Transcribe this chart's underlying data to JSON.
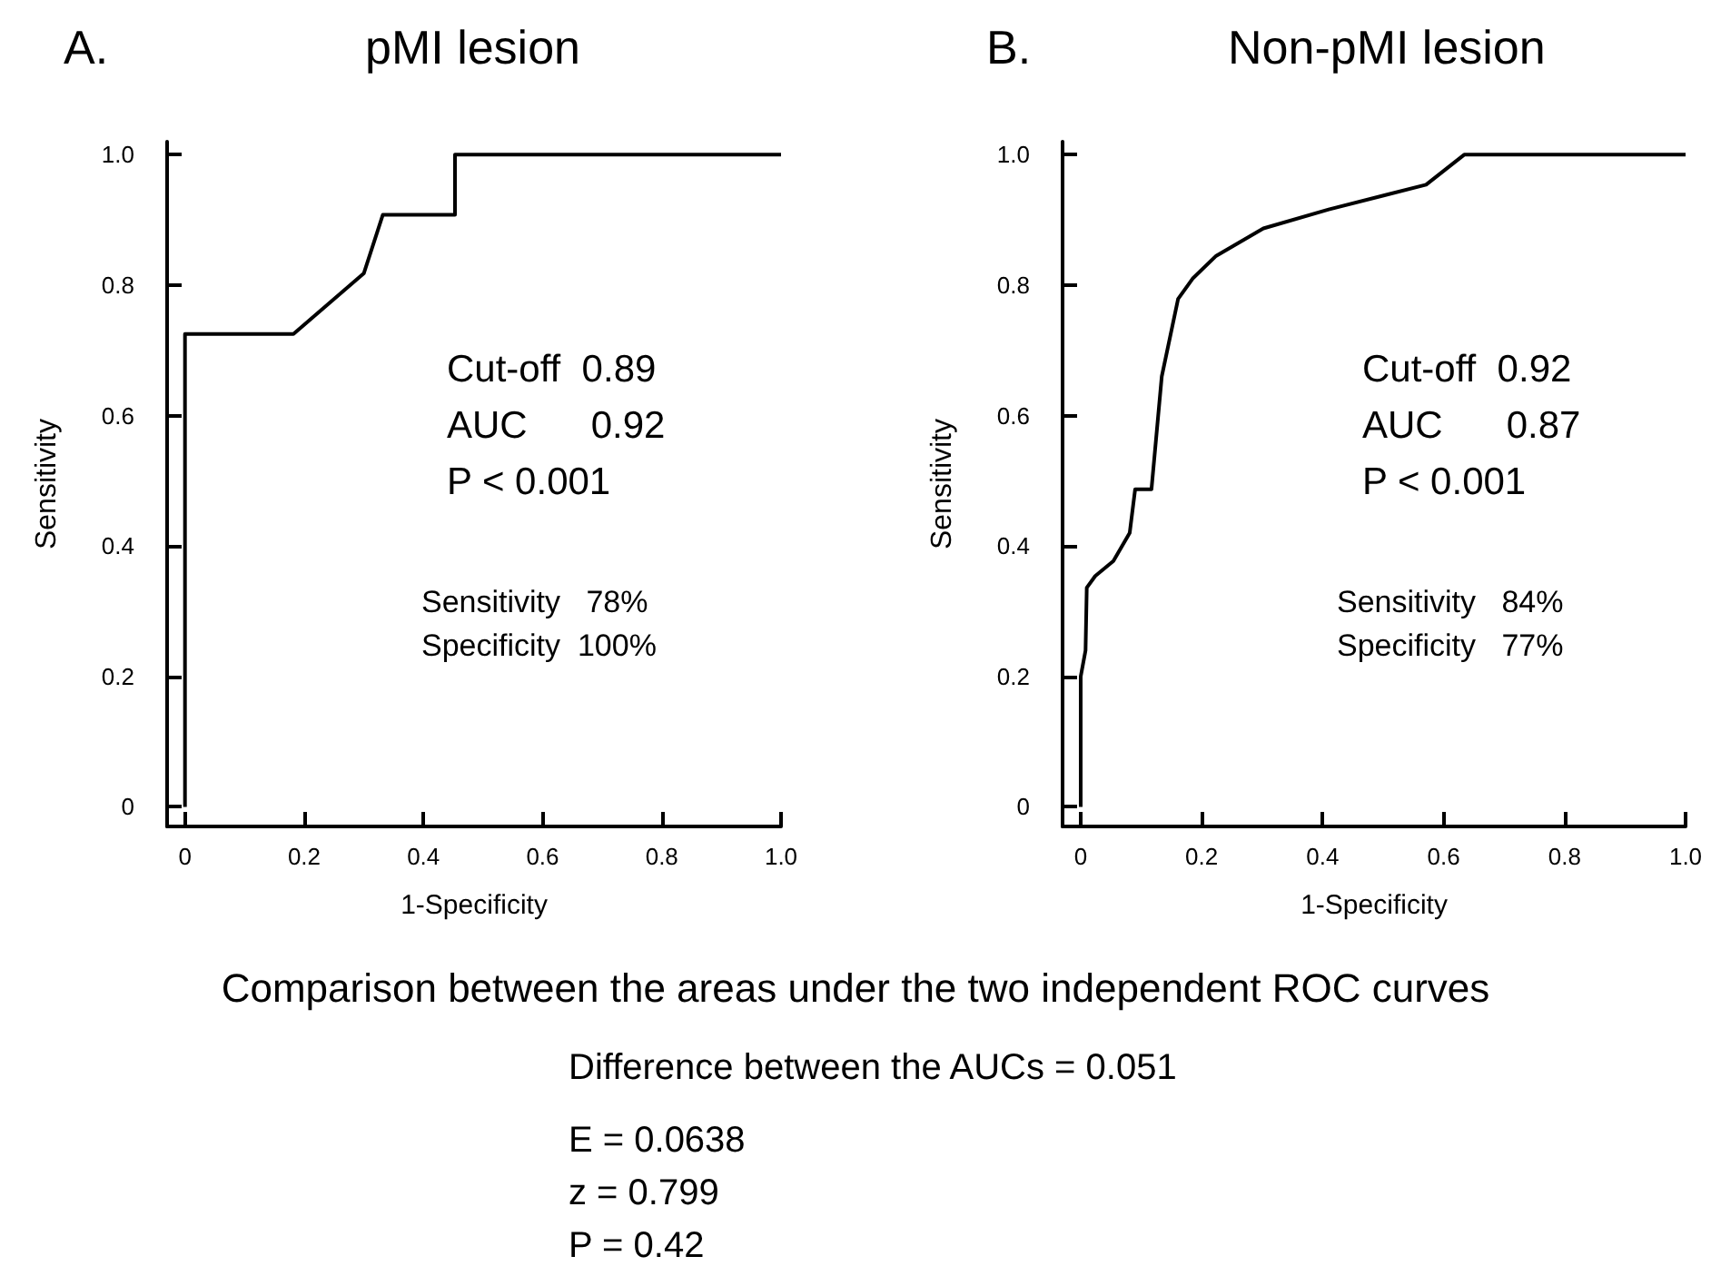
{
  "chart_data": [
    {
      "type": "line",
      "title": "A.",
      "subtitle": "pMI lesion",
      "xlabel": "1-Specificity",
      "ylabel": "Sensitivity",
      "xlim": [
        -0.03,
        1.0
      ],
      "ylim": [
        -0.03,
        1.02
      ],
      "xticks": [
        0,
        0.2,
        0.4,
        0.6,
        0.8,
        {
          "value": 1,
          "label": "1.0"
        }
      ],
      "yticks": [
        0,
        0.2,
        0.4,
        0.6,
        0.8,
        {
          "value": 1,
          "label": "1.0"
        }
      ],
      "grid": false,
      "marker": "none",
      "line_style": "solid",
      "annotations": [
        "Cut-off  0.89",
        "AUC      0.92",
        "P < 0.001",
        "Sensitivity   78%",
        "Specificity  100%"
      ],
      "series": [
        {
          "color": "#000000",
          "x": [
            0,
            0,
            0.182,
            0.3,
            0.332,
            0.453,
            0.453,
            1.0
          ],
          "values": [
            0,
            0.725,
            0.725,
            0.818,
            0.908,
            0.908,
            1.0,
            1.0
          ]
        }
      ]
    },
    {
      "type": "line",
      "title": "B.",
      "subtitle": "Non-pMI lesion",
      "xlabel": "1-Specificity",
      "ylabel": "Sensitivity",
      "xlim": [
        -0.03,
        1.0
      ],
      "ylim": [
        -0.03,
        1.02
      ],
      "xticks": [
        0,
        0.2,
        0.4,
        0.6,
        0.8,
        {
          "value": 1,
          "label": "1.0"
        }
      ],
      "yticks": [
        0,
        0.2,
        0.4,
        0.6,
        0.8,
        {
          "value": 1,
          "label": "1.0"
        }
      ],
      "grid": false,
      "marker": "none",
      "line_style": "solid",
      "annotations": [
        "Cut-off  0.92",
        "AUC      0.87",
        "P < 0.001",
        "Sensitivity   84%",
        "Specificity   77%"
      ],
      "series": [
        {
          "color": "#000000",
          "x": [
            0,
            0,
            0.008,
            0.01,
            0.024,
            0.054,
            0.081,
            0.09,
            0.117,
            0.134,
            0.161,
            0.185,
            0.224,
            0.302,
            0.41,
            0.571,
            0.634,
            1.0
          ],
          "values": [
            0,
            0.2,
            0.24,
            0.336,
            0.354,
            0.377,
            0.42,
            0.487,
            0.487,
            0.66,
            0.779,
            0.81,
            0.845,
            0.887,
            0.916,
            0.954,
            1.0,
            1.0
          ]
        }
      ]
    },
    {
      "type": "other",
      "title": "Comparison between the areas under the two independent ROC curves",
      "annotations": [
        "Difference between the AUCs = 0.051",
        "E = 0.0638",
        "z = 0.799",
        "P = 0.42"
      ]
    }
  ]
}
